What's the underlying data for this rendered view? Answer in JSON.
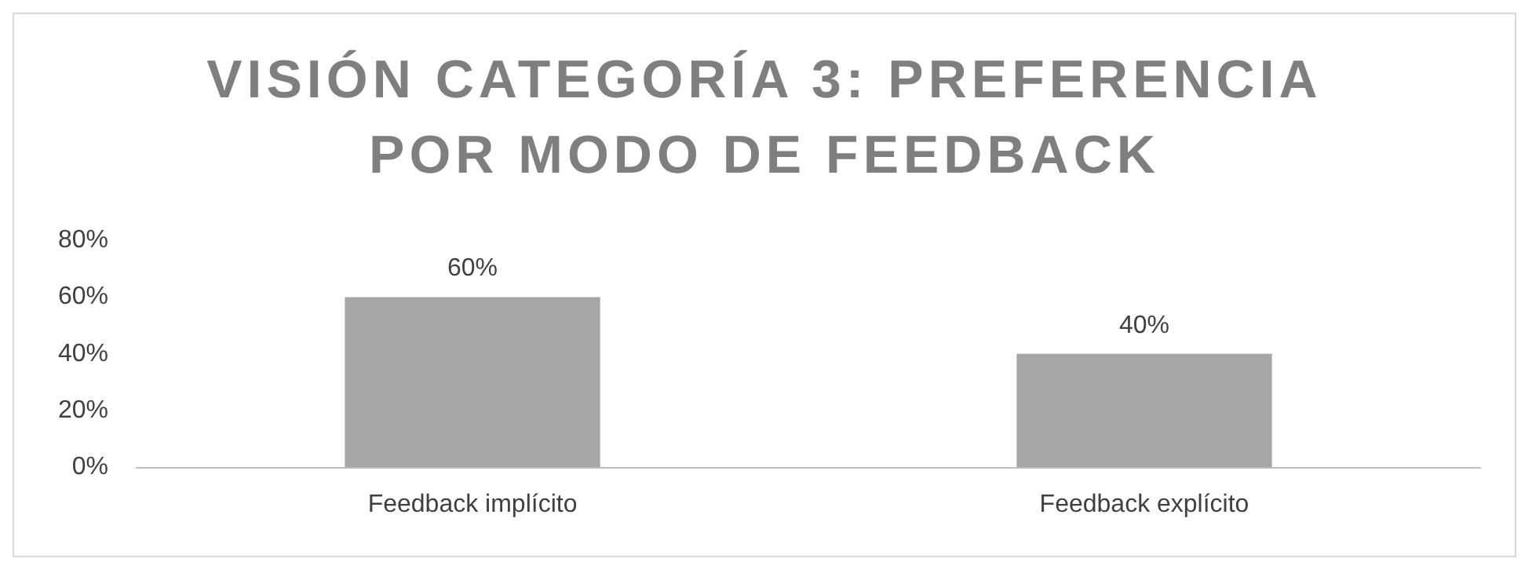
{
  "chart_data": {
    "type": "bar",
    "title": "VISIÓN CATEGORÍA 3: PREFERENCIA POR MODO DE FEEDBACK",
    "categories": [
      "Feedback implícito",
      "Feedback explícito"
    ],
    "values": [
      60,
      40
    ],
    "color": "#a6a6a6",
    "value_labels": [
      "60%",
      "40%"
    ],
    "ylim": [
      0,
      80
    ],
    "yticks": [
      {
        "value": 0,
        "label": "0%"
      },
      {
        "value": 20,
        "label": "20%"
      },
      {
        "value": 40,
        "label": "40%"
      },
      {
        "value": 60,
        "label": "60%"
      },
      {
        "value": 80,
        "label": "80%"
      }
    ],
    "grid": false,
    "legend": false
  }
}
